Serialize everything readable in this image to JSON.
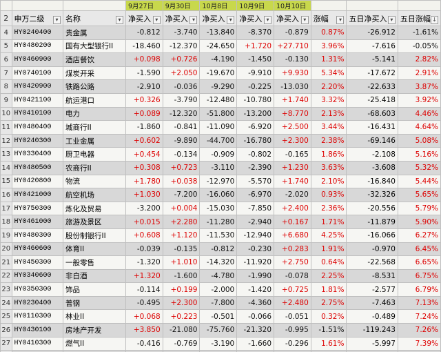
{
  "date_headers": [
    "9月27日",
    "9月30日",
    "10月8日",
    "10月9日",
    "10月10日"
  ],
  "header": {
    "row_num": "2",
    "col_level": "申万二级",
    "col_name": "名称",
    "col_d1": "净买入",
    "col_d2": "净买入",
    "col_d3": "净买入",
    "col_d4": "净买入",
    "col_d5": "净买入",
    "col_change": "涨幅",
    "col_5d_net": "五日净买入",
    "col_5d_change": "五日涨幅"
  },
  "rows": [
    {
      "n": "4",
      "code": "HY0240400",
      "name": "贵金属",
      "d1": "-0.812",
      "d2": "-3.740",
      "d3": "-13.840",
      "d4": "-8.370",
      "d5": "-0.879",
      "chg": "0.87%",
      "net5": "-26.912",
      "chg5": "-1.61%"
    },
    {
      "n": "5",
      "code": "HY0480200",
      "name": "国有大型银行II",
      "d1": "-18.460",
      "d2": "-12.370",
      "d3": "-24.650",
      "d4": "+1.720",
      "d5": "+27.710",
      "chg": "3.96%",
      "net5": "-7.616",
      "chg5": "-0.05%"
    },
    {
      "n": "6",
      "code": "HY0460900",
      "name": "酒店餐饮",
      "d1": "+0.098",
      "d2": "+0.726",
      "d3": "-4.190",
      "d4": "-1.450",
      "d5": "-0.130",
      "chg": "1.31%",
      "net5": "-5.141",
      "chg5": "2.82%"
    },
    {
      "n": "7",
      "code": "HY0740100",
      "name": "煤炭开采",
      "d1": "-1.590",
      "d2": "+2.050",
      "d3": "-19.670",
      "d4": "-9.910",
      "d5": "+9.930",
      "chg": "5.34%",
      "net5": "-17.672",
      "chg5": "2.91%"
    },
    {
      "n": "8",
      "code": "HY0420900",
      "name": "铁路公路",
      "d1": "-2.910",
      "d2": "-0.036",
      "d3": "-9.290",
      "d4": "-0.225",
      "d5": "-13.030",
      "chg": "2.20%",
      "net5": "-22.633",
      "chg5": "3.87%"
    },
    {
      "n": "9",
      "code": "HY0421100",
      "name": "航运港口",
      "d1": "+0.326",
      "d2": "-3.790",
      "d3": "-12.480",
      "d4": "-10.780",
      "d5": "+1.740",
      "chg": "3.32%",
      "net5": "-25.418",
      "chg5": "3.92%"
    },
    {
      "n": "10",
      "code": "HY0410100",
      "name": "电力",
      "d1": "+0.089",
      "d2": "-12.320",
      "d3": "-51.800",
      "d4": "-13.200",
      "d5": "+8.770",
      "chg": "2.13%",
      "net5": "-68.603",
      "chg5": "4.46%"
    },
    {
      "n": "11",
      "code": "HY0480400",
      "name": "城商行II",
      "d1": "-1.860",
      "d2": "-0.841",
      "d3": "-11.090",
      "d4": "-6.920",
      "d5": "+2.500",
      "chg": "3.44%",
      "net5": "-16.431",
      "chg5": "4.64%"
    },
    {
      "n": "12",
      "code": "HY0240300",
      "name": "工业金属",
      "d1": "+0.602",
      "d2": "-9.890",
      "d3": "-44.700",
      "d4": "-16.780",
      "d5": "+2.300",
      "chg": "2.38%",
      "net5": "-69.146",
      "chg5": "5.08%"
    },
    {
      "n": "13",
      "code": "HY0330400",
      "name": "厨卫电器",
      "d1": "+0.454",
      "d2": "-0.134",
      "d3": "-0.909",
      "d4": "-0.802",
      "d5": "-0.165",
      "chg": "1.86%",
      "net5": "-2.108",
      "chg5": "5.16%"
    },
    {
      "n": "14",
      "code": "HY0480500",
      "name": "农商行II",
      "d1": "+0.308",
      "d2": "+0.723",
      "d3": "-3.110",
      "d4": "-2.390",
      "d5": "+1.230",
      "chg": "3.63%",
      "net5": "-3.608",
      "chg5": "5.32%"
    },
    {
      "n": "15",
      "code": "HY0420800",
      "name": "物流",
      "d1": "+1.780",
      "d2": "+0.038",
      "d3": "-12.970",
      "d4": "-5.570",
      "d5": "+1.740",
      "chg": "2.10%",
      "net5": "-16.840",
      "chg5": "5.44%"
    },
    {
      "n": "16",
      "code": "HY0421000",
      "name": "航空机场",
      "d1": "+1.030",
      "d2": "-7.200",
      "d3": "-16.060",
      "d4": "-6.970",
      "d5": "-2.020",
      "chg": "0.93%",
      "net5": "-32.326",
      "chg5": "5.65%"
    },
    {
      "n": "17",
      "code": "HY0750300",
      "name": "炼化及贸易",
      "d1": "-3.200",
      "d2": "+0.004",
      "d3": "-15.030",
      "d4": "-7.850",
      "d5": "+2.400",
      "chg": "2.36%",
      "net5": "-20.556",
      "chg5": "5.79%"
    },
    {
      "n": "18",
      "code": "HY0461000",
      "name": "旅游及景区",
      "d1": "+0.015",
      "d2": "+2.280",
      "d3": "-11.280",
      "d4": "-2.940",
      "d5": "+0.167",
      "chg": "1.71%",
      "net5": "-11.879",
      "chg5": "5.90%"
    },
    {
      "n": "19",
      "code": "HY0480300",
      "name": "股份制银行II",
      "d1": "+0.608",
      "d2": "+1.120",
      "d3": "-11.530",
      "d4": "-12.940",
      "d5": "+6.680",
      "chg": "4.25%",
      "net5": "-16.066",
      "chg5": "6.27%"
    },
    {
      "n": "20",
      "code": "HY0460600",
      "name": "体育II",
      "d1": "-0.039",
      "d2": "-0.135",
      "d3": "-0.812",
      "d4": "-0.230",
      "d5": "+0.283",
      "chg": "1.91%",
      "net5": "-0.970",
      "chg5": "6.45%"
    },
    {
      "n": "21",
      "code": "HY0450300",
      "name": "一般零售",
      "d1": "-1.320",
      "d2": "+1.010",
      "d3": "-14.320",
      "d4": "-11.920",
      "d5": "+2.750",
      "chg": "0.64%",
      "net5": "-22.568",
      "chg5": "6.65%"
    },
    {
      "n": "22",
      "code": "HY0340600",
      "name": "非白酒",
      "d1": "+1.320",
      "d2": "-1.600",
      "d3": "-4.780",
      "d4": "-1.990",
      "d5": "-0.078",
      "chg": "2.25%",
      "net5": "-8.531",
      "chg5": "6.75%"
    },
    {
      "n": "23",
      "code": "HY0350300",
      "name": "饰品",
      "d1": "-0.114",
      "d2": "+0.199",
      "d3": "-2.000",
      "d4": "-1.420",
      "d5": "+0.725",
      "chg": "1.81%",
      "net5": "-2.577",
      "chg5": "6.79%"
    },
    {
      "n": "24",
      "code": "HY0230400",
      "name": "普钢",
      "d1": "-0.495",
      "d2": "+2.300",
      "d3": "-7.800",
      "d4": "-4.360",
      "d5": "+2.480",
      "chg": "2.75%",
      "net5": "-7.463",
      "chg5": "7.13%"
    },
    {
      "n": "25",
      "code": "HY0110300",
      "name": "林业II",
      "d1": "+0.068",
      "d2": "+0.223",
      "d3": "-0.501",
      "d4": "-0.066",
      "d5": "-0.051",
      "chg": "0.32%",
      "net5": "-0.489",
      "chg5": "7.24%"
    },
    {
      "n": "26",
      "code": "HY0430100",
      "name": "房地产开发",
      "d1": "+3.850",
      "d2": "-21.080",
      "d3": "-75.760",
      "d4": "-21.320",
      "d5": "-0.995",
      "chg": "-1.51%",
      "net5": "-119.243",
      "chg5": "7.26%"
    },
    {
      "n": "27",
      "code": "HY0410300",
      "name": "燃气II",
      "d1": "-0.416",
      "d2": "-0.769",
      "d3": "-3.190",
      "d4": "-1.660",
      "d5": "-0.296",
      "chg": "1.61%",
      "net5": "-5.997",
      "chg5": "7.39%"
    },
    {
      "n": "28",
      "code": "HY0350100",
      "name": "纺织制造",
      "d1": "-0.223",
      "d2": "+0.239",
      "d3": "-1.750",
      "d4": "-1.230",
      "d5": "-0.153",
      "chg": "1.22%",
      "net5": "-2.975",
      "chg5": "7.43%"
    }
  ],
  "colors": {
    "positive": "#dd0000",
    "negative": "#111111",
    "date_header_bg": "#c8d84c"
  },
  "icons": {
    "filter": "dropdown-filter-icon",
    "sort": "sort-desc-icon"
  }
}
